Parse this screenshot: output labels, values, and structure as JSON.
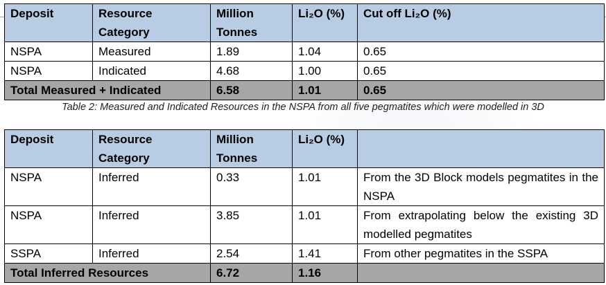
{
  "table1": {
    "headers": [
      "Deposit",
      "Resource Category",
      "Million Tonnes",
      "Li₂O (%)",
      "Cut off Li₂O (%)"
    ],
    "rows": [
      [
        "NSPA",
        "Measured",
        "1.89",
        "1.04",
        "0.65"
      ],
      [
        "NSPA",
        "Indicated",
        "4.68",
        "1.00",
        "0.65"
      ]
    ],
    "total": {
      "label": "Total Measured + Indicated",
      "tonnes": "6.58",
      "grade": "1.01",
      "cutoff": "0.65"
    }
  },
  "caption": "Table 2: Measured and Indicated Resources in the NSPA from all five pegmatites which were modelled in 3D",
  "table2": {
    "headers": [
      "Deposit",
      "Resource Category",
      "Million Tonnes",
      "Li₂O (%)",
      ""
    ],
    "rows": [
      [
        "NSPA",
        "Inferred",
        "0.33",
        "1.01",
        "From the 3D Block models pegmatites in the NSPA"
      ],
      [
        "NSPA",
        "Inferred",
        "3.85",
        "1.01",
        "From extrapolating below the existing 3D modelled pegmatites"
      ],
      [
        "SSPA",
        "Inferred",
        "2.54",
        "1.41",
        "From other pegmatites in the SSPA"
      ]
    ],
    "total": {
      "label": "Total Inferred Resources",
      "tonnes": "6.72",
      "grade": "1.16",
      "note": ""
    }
  },
  "colors": {
    "header_fill": "#b8cce4",
    "total_fill": "#a6a6a6"
  }
}
